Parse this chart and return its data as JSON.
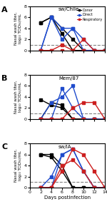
{
  "panels": [
    {
      "label": "A",
      "title": "sw/Chile",
      "donor": [
        [
          2,
          4,
          6,
          8,
          10,
          12,
          14
        ],
        [
          5,
          6,
          3,
          0,
          0,
          0,
          0
        ]
      ],
      "donor2": [
        [
          2,
          4,
          6,
          8,
          10,
          12,
          14
        ],
        [
          5,
          6,
          4,
          2,
          0,
          0,
          0
        ]
      ],
      "direct": [
        [
          2,
          4,
          6,
          8,
          10,
          12,
          14
        ],
        [
          0,
          6,
          4,
          4,
          0,
          0,
          0
        ]
      ],
      "direct2": [
        [
          2,
          4,
          6,
          8,
          10,
          12,
          14
        ],
        [
          0,
          6,
          2,
          4,
          2,
          0,
          0
        ]
      ],
      "resp": [
        [
          2,
          4,
          6,
          8,
          10,
          12,
          14
        ],
        [
          0,
          0,
          1,
          0,
          2,
          0,
          0
        ]
      ],
      "resp2": [
        [
          2,
          4,
          6,
          8,
          10,
          12,
          14
        ],
        [
          0,
          0,
          0,
          0,
          0,
          0,
          0
        ]
      ],
      "dashed": true
    },
    {
      "label": "B",
      "title": "Mem/87",
      "donor": [
        [
          2,
          4,
          6,
          8,
          10,
          12,
          14
        ],
        [
          3.5,
          2.5,
          2,
          0,
          0,
          0,
          0
        ]
      ],
      "donor2": [
        [
          2,
          4,
          6,
          8,
          10,
          12,
          14
        ],
        [
          0,
          3,
          2.5,
          0,
          0,
          0,
          0
        ]
      ],
      "direct": [
        [
          2,
          4,
          6,
          8,
          10,
          12,
          14
        ],
        [
          0,
          3,
          4,
          6,
          0,
          0,
          0
        ]
      ],
      "direct2": [
        [
          2,
          4,
          6,
          8,
          10,
          12,
          14
        ],
        [
          0,
          0,
          5.5,
          2,
          0,
          0,
          0
        ]
      ],
      "resp": [
        [
          2,
          4,
          6,
          8,
          10,
          12,
          14
        ],
        [
          0,
          0,
          0,
          2,
          3,
          3,
          0
        ]
      ],
      "resp2": [
        [
          2,
          4,
          6,
          8,
          10,
          12,
          14
        ],
        [
          0,
          0,
          0,
          0,
          0,
          0,
          0
        ]
      ],
      "dashed": true
    },
    {
      "label": "C",
      "title": "sw/IA",
      "donor": [
        [
          2,
          4,
          6,
          8,
          10,
          12,
          14
        ],
        [
          6,
          5.5,
          3,
          0,
          0,
          0,
          0
        ]
      ],
      "donor2": [
        [
          2,
          4,
          6,
          8,
          10,
          12,
          14
        ],
        [
          6,
          6,
          4,
          0,
          0,
          0,
          0
        ]
      ],
      "direct": [
        [
          2,
          4,
          6,
          8,
          10,
          12,
          14
        ],
        [
          0,
          2,
          6,
          7,
          3,
          0,
          0
        ]
      ],
      "direct2": [
        [
          2,
          4,
          6,
          8,
          10,
          12,
          14
        ],
        [
          0,
          0,
          6,
          7,
          3,
          0,
          0
        ]
      ],
      "resp": [
        [
          2,
          4,
          6,
          8,
          10,
          12,
          14
        ],
        [
          0,
          0,
          3,
          7,
          6,
          3,
          0
        ]
      ],
      "resp2": [
        [
          2,
          4,
          6,
          8,
          10,
          12,
          14
        ],
        [
          0,
          0,
          4,
          5,
          3,
          0,
          0
        ]
      ],
      "dashed": false
    }
  ],
  "xlim": [
    0,
    14
  ],
  "ylim": [
    0,
    8
  ],
  "xticks": [
    0,
    2,
    4,
    6,
    8,
    10,
    12,
    14
  ],
  "yticks": [
    0,
    2,
    4,
    6,
    8
  ],
  "threshold": 1.0,
  "donor_color": "#000000",
  "direct_color": "#1f4bcc",
  "resp_color": "#cc1f1f",
  "legend_labels": [
    "Donor",
    "Direct",
    "Respiratory"
  ],
  "xlabel": "Days postinfection",
  "ylabel": "Nasal wash titer,\nlog₁₀ TCID₅₀/mL"
}
